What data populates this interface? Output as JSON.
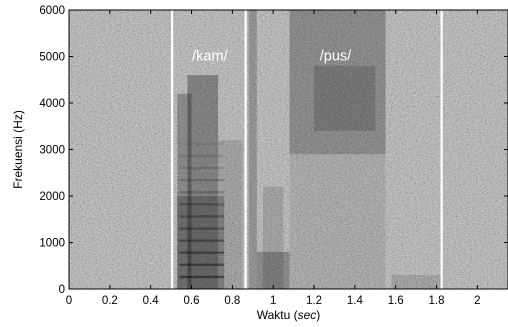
{
  "chart_data": {
    "type": "heatmap",
    "subtype": "spectrogram",
    "colormap": "grayscale",
    "background_color": "#ffffff",
    "axis_color": "#000000",
    "boundary_color": "#ffffff",
    "annotation_color": "#ffffff",
    "xlabel_prefix": "Waktu (",
    "xlabel_unit": "sec",
    "xlabel_suffix": ")",
    "ylabel": "Frekuensi (Hz)",
    "xlim": [
      0,
      2.15
    ],
    "ylim": [
      0,
      6000
    ],
    "xticks": [
      0,
      0.2,
      0.4,
      0.6,
      0.8,
      1,
      1.2,
      1.4,
      1.6,
      1.8,
      2
    ],
    "xtick_labels": [
      "0",
      "0.2",
      "0.4",
      "0.6",
      "0.8",
      "1",
      "1.2",
      "1.4",
      "1.6",
      "1.8",
      "2"
    ],
    "yticks": [
      0,
      1000,
      2000,
      3000,
      4000,
      5000,
      6000
    ],
    "ytick_labels": [
      "0",
      "1000",
      "2000",
      "3000",
      "4000",
      "5000",
      "6000"
    ],
    "segment_boundaries": [
      0.505,
      0.865,
      1.825
    ],
    "annotations": [
      {
        "text": "/kam/",
        "x": 0.69,
        "y": 5000
      },
      {
        "text": "/pus/",
        "x": 1.305,
        "y": 5000
      }
    ],
    "energy_regions": [
      {
        "x0": 0.53,
        "x1": 0.6,
        "y0": 0,
        "y1": 4200,
        "darkness": 0.25
      },
      {
        "x0": 0.58,
        "x1": 0.73,
        "y0": 0,
        "y1": 4600,
        "darkness": 0.3
      },
      {
        "x0": 0.73,
        "x1": 0.85,
        "y0": 0,
        "y1": 3200,
        "darkness": 0.12
      },
      {
        "x0": 0.53,
        "x1": 0.76,
        "y0": 0,
        "y1": 2000,
        "darkness": 0.22
      },
      {
        "x0": 0.88,
        "x1": 0.92,
        "y0": 0,
        "y1": 6000,
        "darkness": 0.2
      },
      {
        "x0": 0.92,
        "x1": 1.08,
        "y0": 0,
        "y1": 800,
        "darkness": 0.25
      },
      {
        "x0": 0.95,
        "x1": 1.05,
        "y0": 0,
        "y1": 2200,
        "darkness": 0.12
      },
      {
        "x0": 1.08,
        "x1": 1.55,
        "y0": 2900,
        "y1": 6000,
        "darkness": 0.25
      },
      {
        "x0": 1.2,
        "x1": 1.5,
        "y0": 3400,
        "y1": 4800,
        "darkness": 0.15
      },
      {
        "x0": 1.08,
        "x1": 1.55,
        "y0": 0,
        "y1": 2900,
        "darkness": 0.08
      },
      {
        "x0": 1.58,
        "x1": 1.82,
        "y0": 0,
        "y1": 300,
        "darkness": 0.12
      }
    ],
    "harmonic_bands": [
      {
        "x0": 0.54,
        "x1": 0.76,
        "fundamental_hz": 260,
        "max_hz": 3200
      }
    ]
  }
}
